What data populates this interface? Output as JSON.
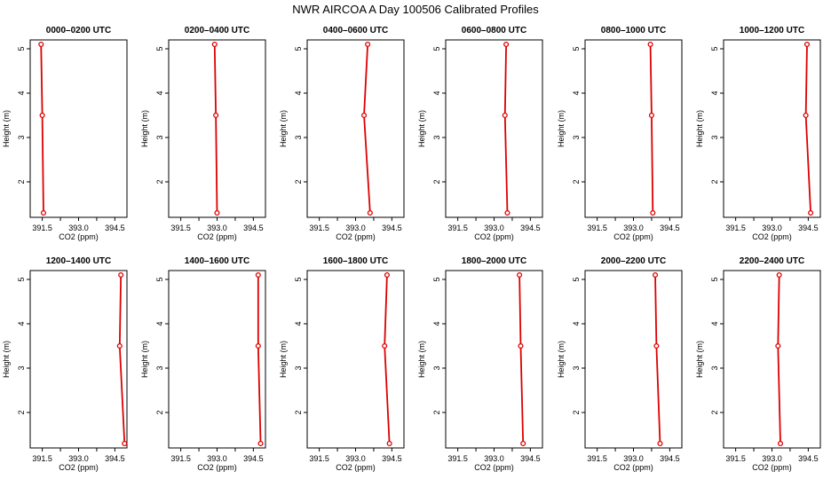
{
  "page": {
    "title": "NWR AIRCOA A  Day 100506  Calibrated Profiles"
  },
  "colors": {
    "series": "#dd0000",
    "axis": "#000000",
    "text": "#000000",
    "background": "#ffffff"
  },
  "shared_axes": {
    "xlabel": "CO2 (ppm)",
    "ylabel": "Height (m)",
    "xlim": [
      391.0,
      395.0
    ],
    "ylim": [
      1.2,
      5.2
    ],
    "xticks": [
      391.5,
      392.25,
      393.0,
      393.75,
      394.5
    ],
    "xtick_labels": [
      "391.5",
      "",
      "393.0",
      "",
      "394.5"
    ],
    "yticks": [
      2,
      3,
      4,
      5
    ],
    "ytick_labels": [
      "2",
      "3",
      "4",
      "5"
    ]
  },
  "chart_data": [
    {
      "type": "line",
      "title": "0000–0200 UTC",
      "xlabel": "CO2 (ppm)",
      "ylabel": "Height (m)",
      "xlim": [
        391.0,
        395.0
      ],
      "ylim": [
        1.2,
        5.2
      ],
      "series": [
        {
          "x": [
            391.45,
            391.5,
            391.55
          ],
          "y": [
            5.1,
            3.5,
            1.3
          ]
        }
      ]
    },
    {
      "type": "line",
      "title": "0200–0400 UTC",
      "xlabel": "CO2 (ppm)",
      "ylabel": "Height (m)",
      "xlim": [
        391.0,
        395.0
      ],
      "ylim": [
        1.2,
        5.2
      ],
      "series": [
        {
          "x": [
            392.9,
            392.95,
            393.0
          ],
          "y": [
            5.1,
            3.5,
            1.3
          ]
        }
      ]
    },
    {
      "type": "line",
      "title": "0400–0600 UTC",
      "xlabel": "CO2 (ppm)",
      "ylabel": "Height (m)",
      "xlim": [
        391.0,
        395.0
      ],
      "ylim": [
        1.2,
        5.2
      ],
      "series": [
        {
          "x": [
            393.5,
            393.35,
            393.6
          ],
          "y": [
            5.1,
            3.5,
            1.3
          ]
        }
      ]
    },
    {
      "type": "line",
      "title": "0600–0800 UTC",
      "xlabel": "CO2 (ppm)",
      "ylabel": "Height (m)",
      "xlim": [
        391.0,
        395.0
      ],
      "ylim": [
        1.2,
        5.2
      ],
      "series": [
        {
          "x": [
            393.5,
            393.45,
            393.55
          ],
          "y": [
            5.1,
            3.5,
            1.3
          ]
        }
      ]
    },
    {
      "type": "line",
      "title": "0800–1000 UTC",
      "xlabel": "CO2 (ppm)",
      "ylabel": "Height (m)",
      "xlim": [
        391.0,
        395.0
      ],
      "ylim": [
        1.2,
        5.2
      ],
      "series": [
        {
          "x": [
            393.7,
            393.75,
            393.8
          ],
          "y": [
            5.1,
            3.5,
            1.3
          ]
        }
      ]
    },
    {
      "type": "line",
      "title": "1000–1200 UTC",
      "xlabel": "CO2 (ppm)",
      "ylabel": "Height (m)",
      "xlim": [
        391.0,
        395.0
      ],
      "ylim": [
        1.2,
        5.2
      ],
      "series": [
        {
          "x": [
            394.45,
            394.4,
            394.6
          ],
          "y": [
            5.1,
            3.5,
            1.3
          ]
        }
      ]
    },
    {
      "type": "line",
      "title": "1200–1400 UTC",
      "xlabel": "CO2 (ppm)",
      "ylabel": "Height (m)",
      "xlim": [
        391.0,
        395.0
      ],
      "ylim": [
        1.2,
        5.2
      ],
      "series": [
        {
          "x": [
            394.75,
            394.7,
            394.9
          ],
          "y": [
            5.1,
            3.5,
            1.3
          ]
        }
      ]
    },
    {
      "type": "line",
      "title": "1400–1600 UTC",
      "xlabel": "CO2 (ppm)",
      "ylabel": "Height (m)",
      "xlim": [
        391.0,
        395.0
      ],
      "ylim": [
        1.2,
        5.2
      ],
      "series": [
        {
          "x": [
            394.7,
            394.7,
            394.8
          ],
          "y": [
            5.1,
            3.5,
            1.3
          ]
        }
      ]
    },
    {
      "type": "line",
      "title": "1600–1800 UTC",
      "xlabel": "CO2 (ppm)",
      "ylabel": "Height (m)",
      "xlim": [
        391.0,
        395.0
      ],
      "ylim": [
        1.2,
        5.2
      ],
      "series": [
        {
          "x": [
            394.3,
            394.2,
            394.4
          ],
          "y": [
            5.1,
            3.5,
            1.3
          ]
        }
      ]
    },
    {
      "type": "line",
      "title": "1800–2000 UTC",
      "xlabel": "CO2 (ppm)",
      "ylabel": "Height (m)",
      "xlim": [
        391.0,
        395.0
      ],
      "ylim": [
        1.2,
        5.2
      ],
      "series": [
        {
          "x": [
            394.05,
            394.1,
            394.2
          ],
          "y": [
            5.1,
            3.5,
            1.3
          ]
        }
      ]
    },
    {
      "type": "line",
      "title": "2000–2200 UTC",
      "xlabel": "CO2 (ppm)",
      "ylabel": "Height (m)",
      "xlim": [
        391.0,
        395.0
      ],
      "ylim": [
        1.2,
        5.2
      ],
      "series": [
        {
          "x": [
            393.9,
            393.95,
            394.1
          ],
          "y": [
            5.1,
            3.5,
            1.3
          ]
        }
      ]
    },
    {
      "type": "line",
      "title": "2200–2400 UTC",
      "xlabel": "CO2 (ppm)",
      "ylabel": "Height (m)",
      "xlim": [
        391.0,
        395.0
      ],
      "ylim": [
        1.2,
        5.2
      ],
      "series": [
        {
          "x": [
            393.3,
            393.25,
            393.35
          ],
          "y": [
            5.1,
            3.5,
            1.3
          ]
        }
      ]
    }
  ]
}
